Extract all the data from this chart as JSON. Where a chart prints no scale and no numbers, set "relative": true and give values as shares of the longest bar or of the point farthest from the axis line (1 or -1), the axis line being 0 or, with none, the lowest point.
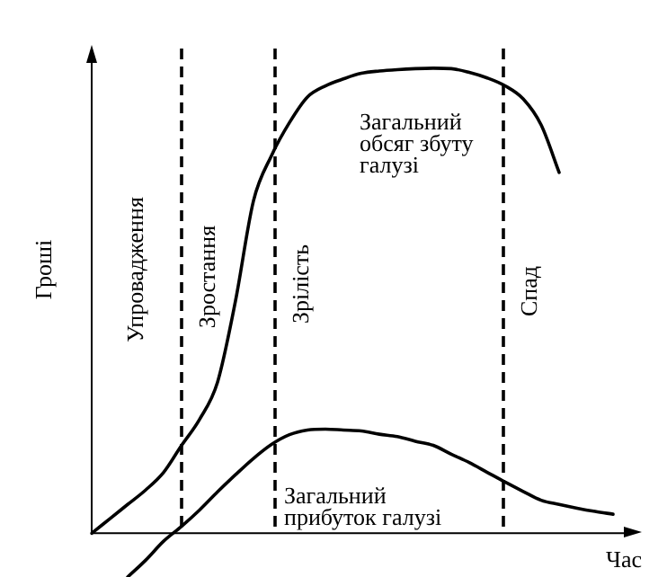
{
  "chart_data": {
    "type": "line",
    "relative": true,
    "xlabel": "Час",
    "ylabel": "Гроші",
    "legend": false,
    "marker": "none",
    "categories": [
      null,
      null,
      null,
      null,
      null,
      null,
      null,
      null,
      null,
      null,
      null,
      null,
      null,
      null,
      null,
      null,
      null,
      null,
      null,
      null,
      null,
      null,
      null,
      null,
      null,
      null,
      null,
      null,
      null,
      null,
      null
    ],
    "series": [
      {
        "name": "Загальний обсяг збуту галузі",
        "color": "#000000",
        "values": [
          0,
          0.031,
          0.062,
          0.093,
          0.131,
          0.189,
          0.245,
          0.325,
          0.5,
          0.715,
          0.812,
          0.883,
          0.938,
          0.962,
          0.977,
          0.989,
          0.994,
          0.997,
          0.999,
          1,
          0.999,
          0.991,
          0.979,
          0.962,
          0.934,
          0.878,
          0.776,
          null,
          null,
          null,
          null
        ]
      },
      {
        "name": "Загальний прибуток галузі",
        "color": "#000000",
        "values": [
          null,
          null,
          -0.094,
          -0.058,
          -0.017,
          0.015,
          0.05,
          0.089,
          0.126,
          0.161,
          0.191,
          0.212,
          0.222,
          0.224,
          0.222,
          0.22,
          0.213,
          0.208,
          0.198,
          0.189,
          0.17,
          0.152,
          0.131,
          0.11,
          0.09,
          0.071,
          0.062,
          0.054,
          0.047,
          0.041,
          null
        ]
      }
    ],
    "annotations": [
      "Упровадження",
      "Зростання",
      "Зрілість",
      "Спад"
    ]
  }
}
